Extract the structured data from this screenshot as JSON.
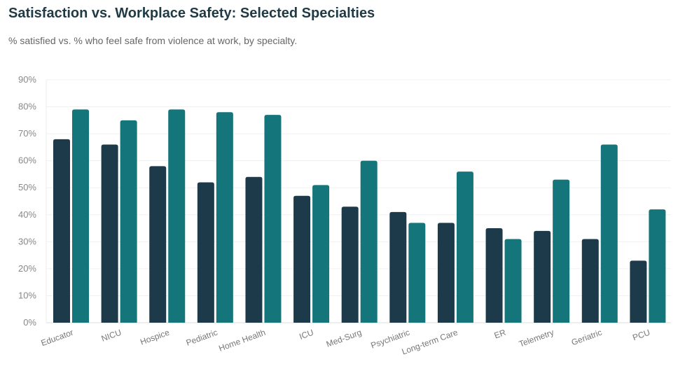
{
  "chart_data": {
    "type": "bar",
    "title": "Satisfaction vs. Workplace Safety: Selected Specialties",
    "subtitle": "% satisfied vs. % who feel safe from violence at work, by specialty.",
    "categories": [
      "Educator",
      "NICU",
      "Hospice",
      "Pediatric",
      "Home Health",
      "ICU",
      "Med-Surg",
      "Psychiatric",
      "Long-term Care",
      "ER",
      "Telemetry",
      "Geriatric",
      "PCU"
    ],
    "series": [
      {
        "values": [
          68,
          66,
          58,
          52,
          54,
          47,
          43,
          41,
          37,
          35,
          34,
          31,
          23
        ],
        "color": "#1d3a4a"
      },
      {
        "values": [
          79,
          75,
          79,
          78,
          77,
          51,
          60,
          37,
          56,
          31,
          53,
          66,
          42
        ],
        "color": "#14757a"
      }
    ],
    "ylim": [
      0,
      90
    ],
    "yticks": [
      "0%",
      "10%",
      "20%",
      "30%",
      "40%",
      "50%",
      "60%",
      "70%",
      "80%",
      "90%"
    ],
    "grid": true
  }
}
